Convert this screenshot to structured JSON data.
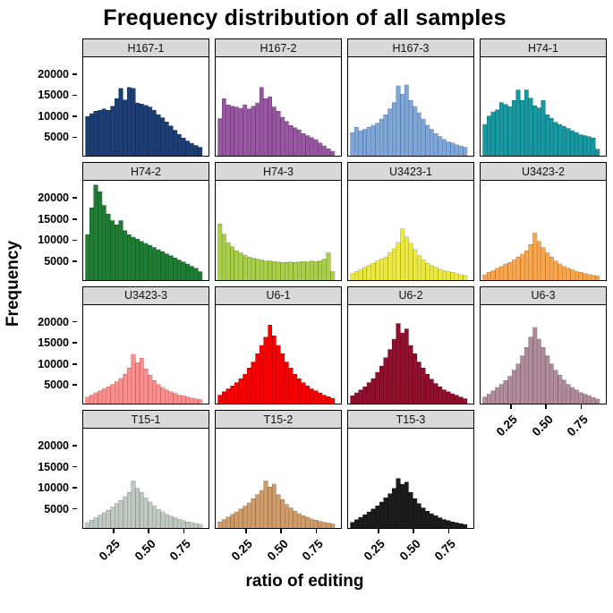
{
  "title": "Frequency distribution of all samples",
  "y_axis_title": "Frequency",
  "x_axis_title": "ratio of editing",
  "chart_data": {
    "type": "bar",
    "variant": "faceted-histogram",
    "grid": false,
    "legend": "none",
    "strip_bg": "#d9d9d9",
    "panel_border": "#000000",
    "x_ticks": [
      "0.25",
      "0.50",
      "0.75"
    ],
    "x_tick_values": [
      0.25,
      0.5,
      0.75
    ],
    "y_ticks": [
      "5000",
      "10000",
      "15000",
      "20000"
    ],
    "y_tick_values": [
      5000,
      10000,
      15000,
      20000
    ],
    "xlim": [
      0.03,
      0.93
    ],
    "ylim": [
      0,
      24000
    ],
    "bin_left_start": 0.045,
    "bin_width": 0.03,
    "rows": [
      [
        0,
        1,
        2,
        3
      ],
      [
        4,
        5,
        6,
        7
      ],
      [
        8,
        9,
        10,
        11
      ],
      [
        12,
        13,
        14
      ]
    ],
    "x_label_panels": [
      11,
      12,
      13,
      14
    ],
    "panels": [
      {
        "name": "H167-1",
        "color": "#1c3e74",
        "values": [
          9500,
          10200,
          10800,
          11000,
          11300,
          11000,
          12000,
          13800,
          16300,
          13500,
          16500,
          16300,
          12800,
          12500,
          12200,
          11800,
          11000,
          10000,
          9200,
          8200,
          7200,
          6200,
          5200,
          4300,
          3600,
          3000,
          2500,
          2100
        ]
      },
      {
        "name": "H167-2",
        "color": "#9657a0",
        "values": [
          9000,
          13800,
          12300,
          12000,
          11800,
          11500,
          12300,
          11300,
          12000,
          12800,
          16500,
          13800,
          14300,
          11800,
          10800,
          9300,
          8300,
          7300,
          6800,
          6300,
          5400,
          4900,
          4400,
          3900,
          3100,
          2400,
          1700,
          1100
        ]
      },
      {
        "name": "H167-3",
        "color": "#7ea6d9",
        "values": [
          5600,
          6900,
          6100,
          6400,
          6900,
          7400,
          7900,
          8900,
          9900,
          11400,
          12900,
          16900,
          14900,
          17100,
          13400,
          11900,
          10400,
          8900,
          7400,
          6400,
          5400,
          4700,
          4000,
          3400,
          3100,
          2700,
          2400,
          2100
        ]
      },
      {
        "name": "H74-1",
        "color": "#1797a0",
        "values": [
          7600,
          9600,
          10600,
          11100,
          12900,
          12400,
          11900,
          13400,
          15900,
          13400,
          15900,
          13900,
          12100,
          11600,
          13400,
          9900,
          9100,
          8100,
          7600,
          7100,
          6600,
          6100,
          5600,
          5100,
          4900,
          4600,
          4300,
          1600
        ]
      },
      {
        "name": "H74-2",
        "color": "#1e7d33",
        "values": [
          11000,
          17500,
          23000,
          21400,
          18100,
          16000,
          14400,
          13400,
          14400,
          12000,
          11000,
          10400,
          9900,
          9400,
          8900,
          8400,
          7900,
          7400,
          6900,
          6400,
          5900,
          5400,
          4900,
          4400,
          3900,
          3400,
          2900,
          2100
        ]
      },
      {
        "name": "H74-3",
        "color": "#a9ce49",
        "values": [
          13600,
          11100,
          9100,
          8100,
          7100,
          6600,
          6100,
          5600,
          5300,
          5100,
          4900,
          4700,
          4600,
          4500,
          4400,
          4300,
          4300,
          4400,
          4300,
          4400,
          4500,
          4400,
          4600,
          4500,
          4700,
          5100,
          6600,
          2100
        ]
      },
      {
        "name": "U3423-1",
        "color": "#ebe83e",
        "values": [
          1600,
          2100,
          2600,
          3100,
          3600,
          4100,
          4600,
          5100,
          5600,
          6600,
          7600,
          9100,
          12400,
          10400,
          8900,
          7400,
          5900,
          4900,
          4100,
          3600,
          3100,
          2600,
          2300,
          2100,
          1900,
          1600,
          1300,
          1100
        ]
      },
      {
        "name": "U3423-2",
        "color": "#f8a54b",
        "values": [
          1300,
          1900,
          2300,
          2900,
          3300,
          3900,
          4300,
          4900,
          5600,
          6300,
          7100,
          8600,
          11400,
          9400,
          7900,
          6600,
          5600,
          4600,
          3900,
          3300,
          2900,
          2500,
          2100,
          1900,
          1600,
          1400,
          1200,
          1000
        ]
      },
      {
        "name": "U3423-3",
        "color": "#fc8d8d",
        "values": [
          1600,
          2100,
          2600,
          3100,
          3600,
          4100,
          4600,
          5300,
          6100,
          7100,
          8600,
          11900,
          9900,
          11000,
          8400,
          6900,
          5600,
          4600,
          3900,
          3300,
          2900,
          2500,
          2100,
          1900,
          1600,
          1400,
          1200,
          1000
        ]
      },
      {
        "name": "U6-1",
        "color": "#f80000",
        "values": [
          2100,
          2900,
          3600,
          4300,
          5100,
          6100,
          7100,
          8600,
          10100,
          12100,
          14100,
          16100,
          19000,
          16400,
          14100,
          12100,
          10100,
          8600,
          7100,
          6100,
          5100,
          4300,
          3600,
          3100,
          2600,
          2100,
          1700,
          1300
        ]
      },
      {
        "name": "U6-2",
        "color": "#8f0f2d",
        "values": [
          1900,
          2600,
          3300,
          4100,
          5100,
          6100,
          7600,
          9100,
          11100,
          13100,
          15600,
          19400,
          17100,
          18100,
          14100,
          12100,
          10100,
          8600,
          7100,
          5900,
          4900,
          4100,
          3400,
          2900,
          2400,
          2000,
          1600,
          1200
        ]
      },
      {
        "name": "U6-3",
        "color": "#b08c9b",
        "values": [
          1600,
          2300,
          3100,
          3900,
          4700,
          5600,
          6600,
          8100,
          9600,
          11600,
          13600,
          16100,
          18400,
          15600,
          13600,
          11600,
          9600,
          8100,
          6900,
          5700,
          4700,
          3900,
          3300,
          2700,
          2300,
          1900,
          1500,
          1100
        ]
      },
      {
        "name": "T15-1",
        "color": "#bfc9c2",
        "values": [
          1300,
          1900,
          2500,
          3100,
          3700,
          4300,
          5100,
          5900,
          6700,
          7600,
          8600,
          11400,
          9600,
          8600,
          7300,
          6300,
          5300,
          4500,
          3900,
          3300,
          2900,
          2500,
          2100,
          1800,
          1500,
          1300,
          1100,
          900
        ]
      },
      {
        "name": "T15-2",
        "color": "#cf9b69",
        "values": [
          1500,
          2100,
          2700,
          3300,
          3900,
          4600,
          5300,
          6100,
          7100,
          8100,
          9100,
          11400,
          9900,
          10600,
          8100,
          6900,
          5700,
          4900,
          4100,
          3500,
          3000,
          2600,
          2200,
          1900,
          1600,
          1400,
          1200,
          1000
        ]
      },
      {
        "name": "T15-3",
        "color": "#1c1c1c",
        "values": [
          1400,
          2000,
          2600,
          3200,
          3900,
          4600,
          5400,
          6300,
          7300,
          8300,
          9600,
          12000,
          10600,
          11100,
          8600,
          7100,
          5900,
          4900,
          4100,
          3500,
          3000,
          2500,
          2100,
          1800,
          1500,
          1300,
          1100,
          900
        ]
      }
    ]
  }
}
